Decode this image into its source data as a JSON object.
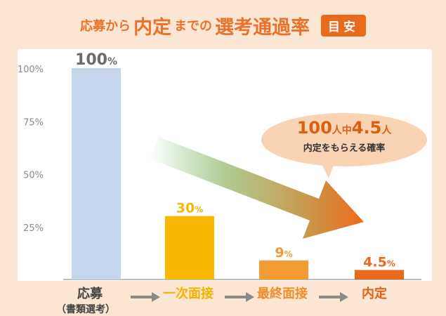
{
  "title": {
    "part1": "応募から",
    "part2": "内定",
    "part3": "までの",
    "part4": "選考通過率",
    "badge": "目安"
  },
  "callout": {
    "num1": "100",
    "unit1": "人",
    "mid": "中",
    "num2": "4.5",
    "unit2": "人",
    "line2": "内定をもらえる確率"
  },
  "stages": {
    "s1": "応募",
    "s1_sub": "（書類選考）",
    "s2": "一次面接",
    "s3": "最終面接",
    "s4": "内定"
  },
  "colors": {
    "background": "#fbe6d4",
    "bar1": "#c4d5ec",
    "bar2": "#f6b800",
    "bar3": "#f49a33",
    "bar4": "#ea6a1c",
    "accent": "#e8732a"
  },
  "chart_data": {
    "type": "bar",
    "categories": [
      "応募（書類選考）",
      "一次面接",
      "最終面接",
      "内定"
    ],
    "values": [
      100,
      30,
      9,
      4.5
    ],
    "value_labels": [
      "100%",
      "30%",
      "9%",
      "4.5%"
    ],
    "yticks": [
      "25%",
      "50%",
      "75%",
      "100%"
    ],
    "ytick_values": [
      25,
      50,
      75,
      100
    ],
    "ylim": [
      0,
      100
    ],
    "grid": false
  }
}
